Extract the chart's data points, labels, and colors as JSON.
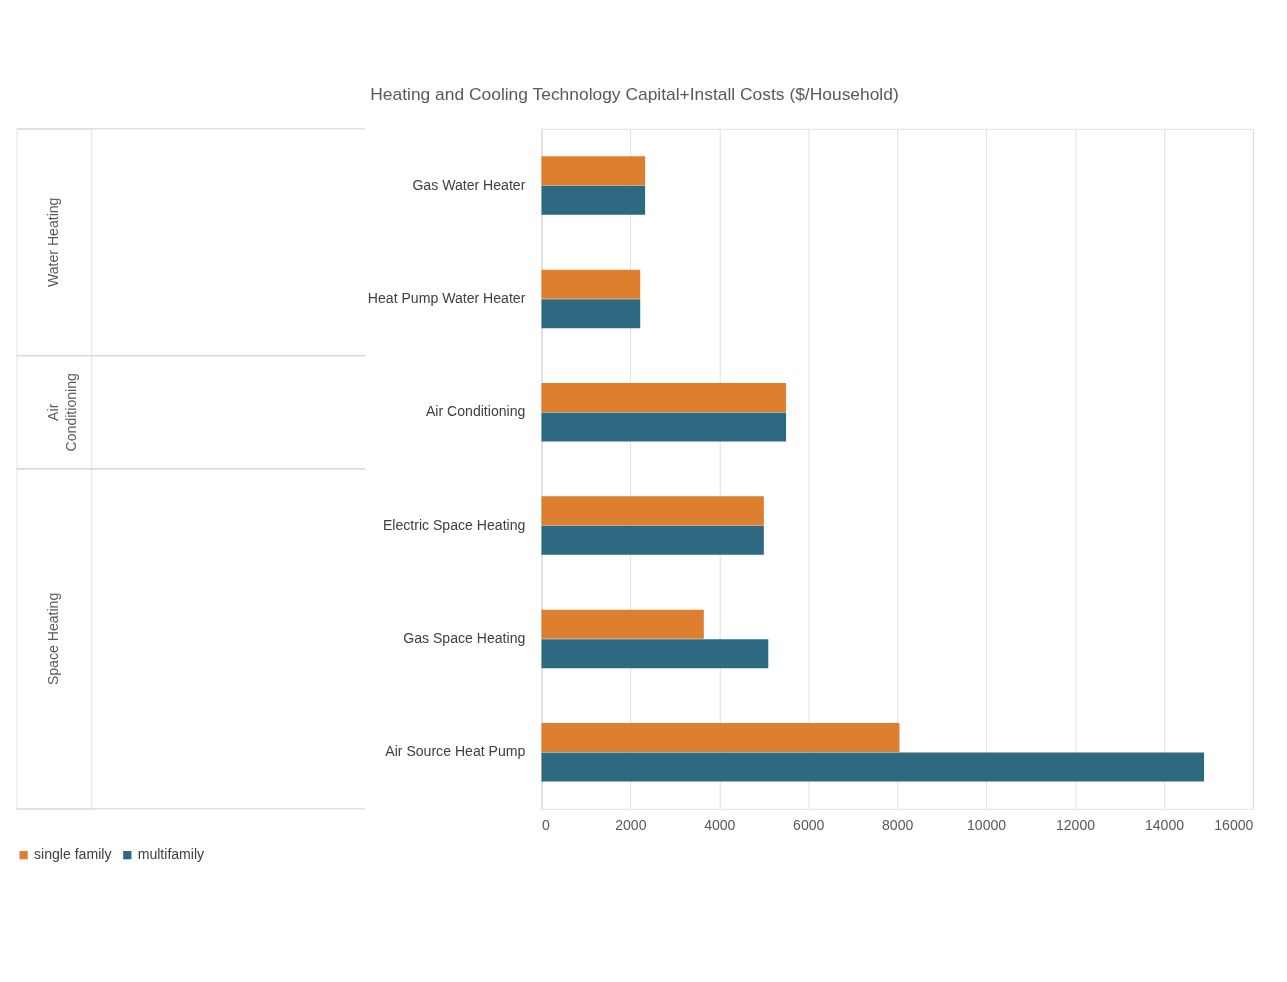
{
  "chart_data": {
    "type": "bar",
    "orientation": "horizontal",
    "title": "Heating and Cooling Technology Capital+Install Costs ($/Household)",
    "categories": [
      "Gas Water Heater",
      "Heat Pump Water Heater",
      "Air Conditioning",
      "Electric Space Heating",
      "Gas Space Heating",
      "Air Source Heat Pump"
    ],
    "series": [
      {
        "name": "single family",
        "color": "#dd7f2f",
        "values": [
          2330,
          2220,
          5500,
          5000,
          3650,
          8050
        ]
      },
      {
        "name": "multifamily",
        "color": "#2d6a82",
        "values": [
          2330,
          2220,
          5500,
          5000,
          5100,
          14900
        ]
      }
    ],
    "annotations": [
      "Water Heating",
      "Air Conditioning",
      "Space Heating"
    ],
    "xlim": [
      0,
      16000
    ],
    "xticks": [
      0,
      2000,
      4000,
      6000,
      8000,
      10000,
      12000,
      14000,
      16000
    ],
    "grid": "x",
    "legend": "bottom"
  }
}
